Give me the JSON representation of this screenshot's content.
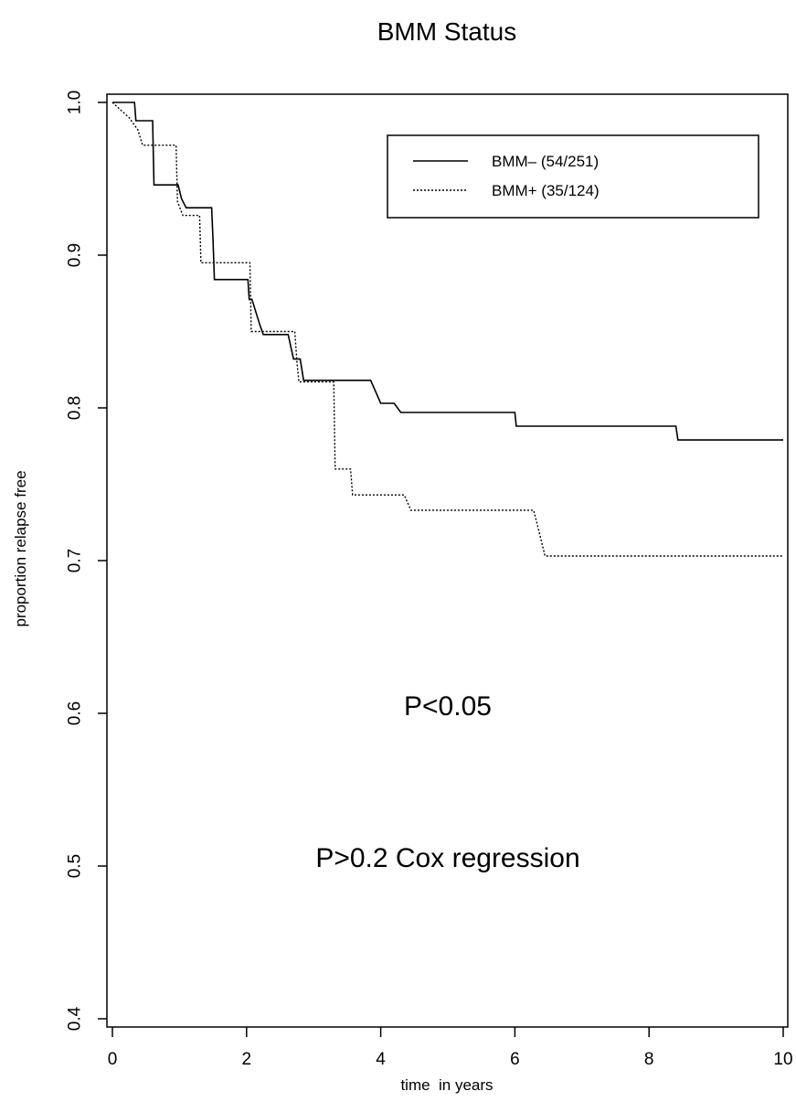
{
  "chart_data": {
    "type": "line",
    "title": "BMM Status",
    "xlabel": "time  in years",
    "ylabel": "proportion relapse free",
    "xlim": [
      0,
      10
    ],
    "ylim": [
      0.4,
      1.0
    ],
    "xticks": [
      0,
      2,
      4,
      6,
      8,
      10
    ],
    "yticks": [
      0.4,
      0.5,
      0.6,
      0.7,
      0.8,
      0.9,
      1.0
    ],
    "xtick_labels": [
      "0",
      "2",
      "4",
      "6",
      "8",
      "10"
    ],
    "ytick_labels": [
      "0.4",
      "0.5",
      "0.6",
      "0.7",
      "0.8",
      "0.9",
      "1.0"
    ],
    "step": true,
    "legend_position": "top-right",
    "series": [
      {
        "name": "BMM– (54/251)",
        "line_style": "solid",
        "points": [
          [
            0,
            1.0
          ],
          [
            0.33,
            1.0
          ],
          [
            0.35,
            0.988
          ],
          [
            0.6,
            0.988
          ],
          [
            0.62,
            0.946
          ],
          [
            0.98,
            0.946
          ],
          [
            1.03,
            0.937
          ],
          [
            1.1,
            0.931
          ],
          [
            1.48,
            0.931
          ],
          [
            1.5,
            0.91
          ],
          [
            1.52,
            0.884
          ],
          [
            2.02,
            0.884
          ],
          [
            2.04,
            0.871
          ],
          [
            2.08,
            0.871
          ],
          [
            2.2,
            0.854
          ],
          [
            2.25,
            0.848
          ],
          [
            2.62,
            0.848
          ],
          [
            2.7,
            0.832
          ],
          [
            2.8,
            0.832
          ],
          [
            2.85,
            0.818
          ],
          [
            3.85,
            0.818
          ],
          [
            4.0,
            0.803
          ],
          [
            4.2,
            0.803
          ],
          [
            4.3,
            0.797
          ],
          [
            6.0,
            0.797
          ],
          [
            6.02,
            0.788
          ],
          [
            8.4,
            0.788
          ],
          [
            8.43,
            0.779
          ],
          [
            10.0,
            0.779
          ]
        ]
      },
      {
        "name": "BMM+ (35/124)",
        "line_style": "dotted",
        "points": [
          [
            0,
            1.0
          ],
          [
            0.25,
            0.99
          ],
          [
            0.38,
            0.982
          ],
          [
            0.45,
            0.972
          ],
          [
            0.95,
            0.972
          ],
          [
            0.97,
            0.935
          ],
          [
            1.05,
            0.926
          ],
          [
            1.3,
            0.926
          ],
          [
            1.32,
            0.895
          ],
          [
            2.05,
            0.895
          ],
          [
            2.07,
            0.85
          ],
          [
            2.25,
            0.85
          ],
          [
            2.3,
            0.85
          ],
          [
            2.72,
            0.85
          ],
          [
            2.75,
            0.83
          ],
          [
            2.78,
            0.817
          ],
          [
            3.3,
            0.817
          ],
          [
            3.32,
            0.76
          ],
          [
            3.55,
            0.76
          ],
          [
            3.58,
            0.743
          ],
          [
            4.35,
            0.743
          ],
          [
            4.45,
            0.733
          ],
          [
            6.28,
            0.733
          ],
          [
            6.45,
            0.703
          ],
          [
            10.0,
            0.703
          ]
        ]
      }
    ],
    "annotations": [
      "P<0.05",
      "P>0.2 Cox regression"
    ]
  }
}
